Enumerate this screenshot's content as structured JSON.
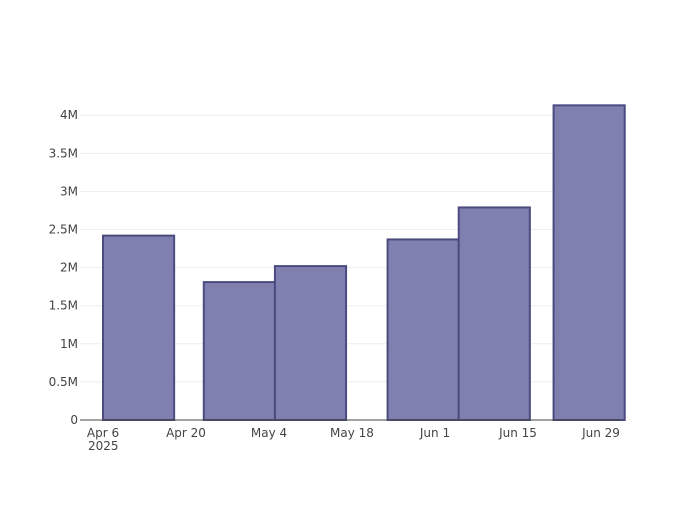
{
  "chart_data": {
    "type": "bar",
    "title": "",
    "xlabel": "",
    "ylabel": "",
    "grid": true,
    "x_start": "2025-04-06",
    "x_end": "2025-06-29",
    "ylim": [
      0,
      4200000
    ],
    "y_ticks": [
      {
        "value": 0,
        "label": "0"
      },
      {
        "value": 500000,
        "label": "0.5M"
      },
      {
        "value": 1000000,
        "label": "1M"
      },
      {
        "value": 1500000,
        "label": "1.5M"
      },
      {
        "value": 2000000,
        "label": "2M"
      },
      {
        "value": 2500000,
        "label": "2.5M"
      },
      {
        "value": 3000000,
        "label": "3M"
      },
      {
        "value": 3500000,
        "label": "3.5M"
      },
      {
        "value": 4000000,
        "label": "4M"
      }
    ],
    "x_ticks": [
      {
        "date": "2025-04-06",
        "label": "Apr 6",
        "sublabel": "2025"
      },
      {
        "date": "2025-04-20",
        "label": "Apr 20",
        "sublabel": ""
      },
      {
        "date": "2025-05-04",
        "label": "May 4",
        "sublabel": ""
      },
      {
        "date": "2025-05-18",
        "label": "May 18",
        "sublabel": ""
      },
      {
        "date": "2025-06-01",
        "label": "Jun 1",
        "sublabel": ""
      },
      {
        "date": "2025-06-15",
        "label": "Jun 15",
        "sublabel": ""
      },
      {
        "date": "2025-06-29",
        "label": "Jun 29",
        "sublabel": ""
      }
    ],
    "bars": [
      {
        "start": "2025-04-06",
        "end": "2025-04-18",
        "value": 2420000
      },
      {
        "start": "2025-04-23",
        "end": "2025-05-05",
        "value": 1810000
      },
      {
        "start": "2025-05-05",
        "end": "2025-05-17",
        "value": 2020000
      },
      {
        "start": "2025-05-24",
        "end": "2025-06-05",
        "value": 2370000
      },
      {
        "start": "2025-06-05",
        "end": "2025-06-17",
        "value": 2790000
      },
      {
        "start": "2025-06-21",
        "end": "2025-07-03",
        "value": 4130000
      }
    ],
    "colors": {
      "bar_fill": "#7f7fb0",
      "bar_stroke": "#4b4b80"
    }
  }
}
